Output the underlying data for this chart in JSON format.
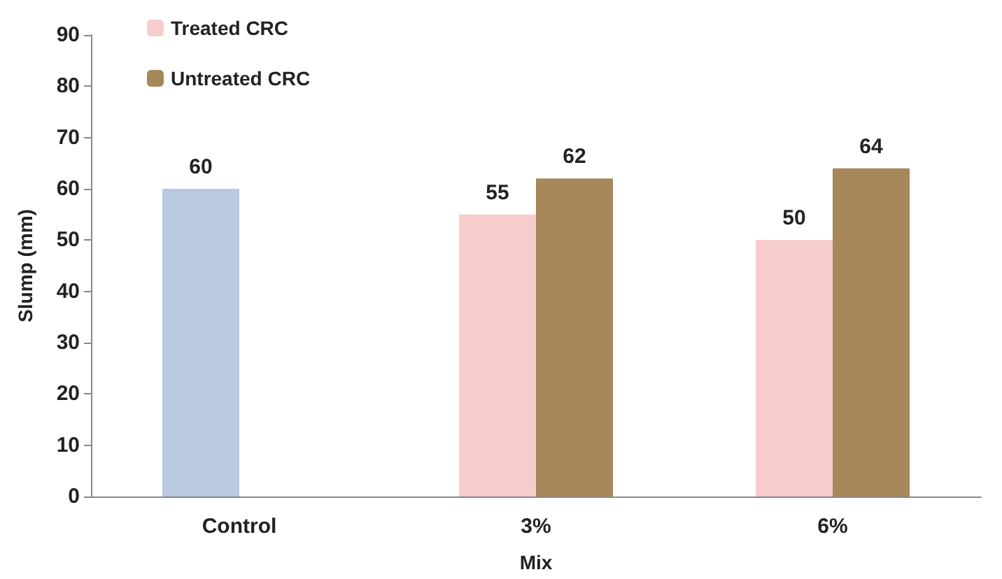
{
  "chart_data": {
    "type": "bar",
    "xlabel": "Mix",
    "ylabel": "Slump (mm)",
    "categories": [
      "Control",
      "3%",
      "6%"
    ],
    "series": [
      {
        "color": "#b9c9e2",
        "values": [
          60,
          null,
          null
        ]
      },
      {
        "name": "Treated CRC",
        "color": "#f6cccc",
        "values": [
          null,
          55,
          50
        ]
      },
      {
        "name": "Untreated CRC",
        "color": "#a7885a",
        "values": [
          null,
          62,
          64
        ]
      }
    ],
    "ylim": [
      0,
      90
    ],
    "yticks": [
      0,
      10,
      20,
      30,
      40,
      50,
      60,
      70,
      80,
      90
    ],
    "data_labels": true,
    "grid": false,
    "legend": "top left"
  }
}
